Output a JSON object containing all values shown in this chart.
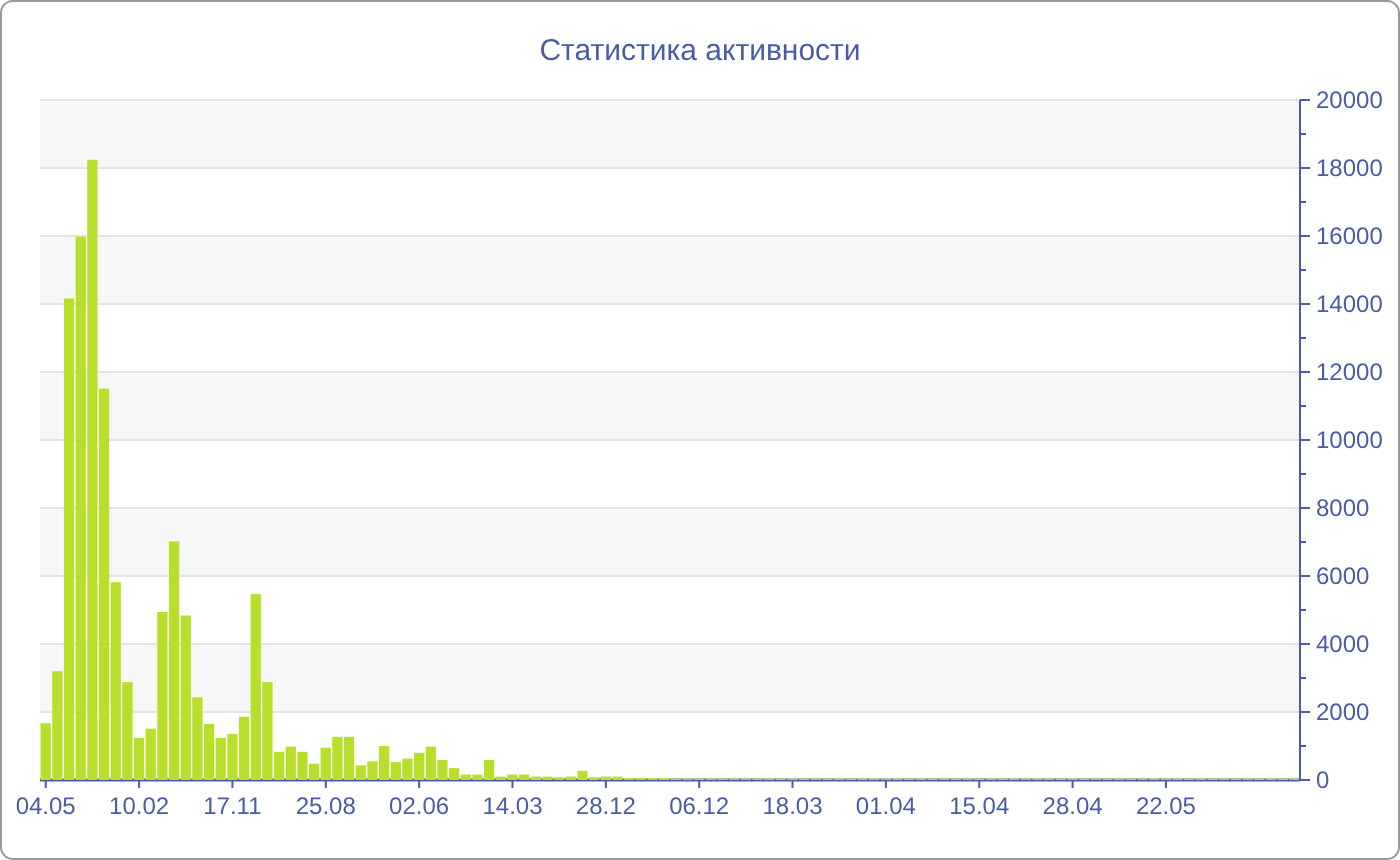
{
  "chart_data": {
    "type": "bar",
    "title": "Статистика активности",
    "categories": [
      "04.05",
      null,
      null,
      null,
      null,
      null,
      null,
      null,
      "10.02",
      null,
      null,
      null,
      null,
      null,
      null,
      null,
      "17.11",
      null,
      null,
      null,
      null,
      null,
      null,
      null,
      "25.08",
      null,
      null,
      null,
      null,
      null,
      null,
      null,
      "02.06",
      null,
      null,
      null,
      null,
      null,
      null,
      null,
      "14.03",
      null,
      null,
      null,
      null,
      null,
      null,
      null,
      "28.12",
      null,
      null,
      null,
      null,
      null,
      null,
      null,
      "06.12",
      null,
      null,
      null,
      null,
      null,
      null,
      null,
      "18.03",
      null,
      null,
      null,
      null,
      null,
      null,
      null,
      "01.04",
      null,
      null,
      null,
      null,
      null,
      null,
      null,
      "15.04",
      null,
      null,
      null,
      null,
      null,
      null,
      null,
      "28.04",
      null,
      null,
      null,
      null,
      null,
      null,
      null,
      "22.05",
      null,
      null,
      null,
      null,
      null,
      null,
      null,
      null,
      null,
      null,
      null
    ],
    "values": [
      1670,
      3200,
      14160,
      15980,
      18240,
      11510,
      5820,
      2880,
      1240,
      1510,
      4940,
      7020,
      4840,
      2430,
      1650,
      1240,
      1350,
      1860,
      5470,
      2880,
      830,
      980,
      830,
      480,
      950,
      1270,
      1270,
      430,
      550,
      1000,
      530,
      630,
      800,
      980,
      590,
      350,
      160,
      160,
      590,
      100,
      160,
      160,
      100,
      100,
      80,
      100,
      270,
      80,
      100,
      100,
      60,
      60,
      60,
      60,
      40,
      40,
      40,
      40,
      40,
      40,
      40,
      40,
      40,
      40,
      40,
      40,
      40,
      40,
      40,
      40,
      40,
      40,
      40,
      40,
      40,
      40,
      40,
      40,
      40,
      40,
      40,
      40,
      40,
      40,
      40,
      40,
      40,
      40,
      40,
      40,
      40,
      40,
      40,
      40,
      40,
      40,
      40,
      40,
      40,
      40,
      40,
      40,
      40,
      40,
      40,
      40,
      40,
      40
    ],
    "color": "#b8df2c",
    "ylim": [
      0,
      20000
    ],
    "yticks": [
      0,
      {
        "value": 1000,
        "label": null
      },
      2000,
      {
        "value": 3000,
        "label": null
      },
      4000,
      {
        "value": 5000,
        "label": null
      },
      6000,
      {
        "value": 7000,
        "label": null
      },
      8000,
      {
        "value": 9000,
        "label": null
      },
      10000,
      {
        "value": 11000,
        "label": null
      },
      12000,
      {
        "value": 13000,
        "label": null
      },
      14000,
      {
        "value": 15000,
        "label": null
      },
      16000,
      {
        "value": 17000,
        "label": null
      },
      18000,
      {
        "value": 19000,
        "label": null
      },
      20000
    ],
    "grid": "y"
  }
}
